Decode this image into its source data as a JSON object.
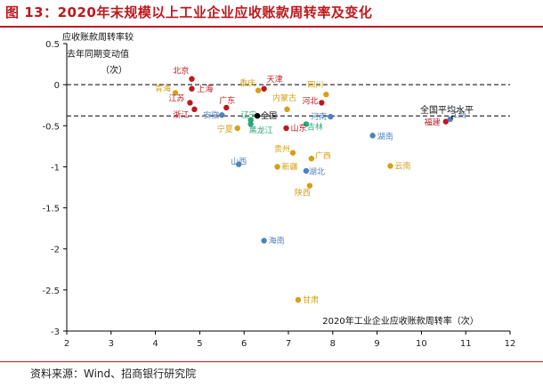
{
  "header": {
    "title": "图 13：2020年末规模以上工业企业应收账款周转率及变化"
  },
  "footer": {
    "source": "资料来源：Wind、招商银行研究院"
  },
  "chart_data": {
    "type": "scatter",
    "title": "图 13：2020年末规模以上工业企业应收账款周转率及变化",
    "xlabel": "2020年工业企业应收账款周转率（次）",
    "ylabel": "应收账款周转率较去年同期变动值（次）",
    "ylabel_lines": [
      "应收账款周转率较",
      "去年同期变动值",
      "（次）"
    ],
    "xlim": [
      2,
      12
    ],
    "ylim": [
      -3,
      0.5
    ],
    "x_ticks": [
      "2",
      "3",
      "4",
      "5",
      "6",
      "7",
      "8",
      "9",
      "10",
      "11",
      "12"
    ],
    "y_ticks": [
      "0.5",
      "0",
      "-0.5",
      "-1",
      "-1.5",
      "-2",
      "-2.5",
      "-3"
    ],
    "zero_line": 0,
    "national_average_y": -0.38,
    "national_average_label": "全国平均水平",
    "colors": {
      "red": "#c0171d",
      "orange": "#d4a017",
      "blue": "#4f81bd",
      "green": "#2aa876",
      "black": "#000000"
    },
    "points": [
      {
        "name": "北京",
        "x": 4.82,
        "y": 0.07,
        "color": "red"
      },
      {
        "name": "上海",
        "x": 4.82,
        "y": -0.05,
        "color": "red"
      },
      {
        "name": "青海",
        "x": 4.45,
        "y": -0.1,
        "color": "orange"
      },
      {
        "name": "江苏",
        "x": 4.78,
        "y": -0.22,
        "color": "red"
      },
      {
        "name": "浙江",
        "x": 4.88,
        "y": -0.3,
        "color": "red"
      },
      {
        "name": "安徽",
        "x": 5.5,
        "y": -0.37,
        "color": "blue"
      },
      {
        "name": "广东",
        "x": 5.6,
        "y": -0.28,
        "color": "red"
      },
      {
        "name": "宁夏",
        "x": 5.85,
        "y": -0.53,
        "color": "orange"
      },
      {
        "name": "重庆",
        "x": 6.32,
        "y": -0.07,
        "color": "orange"
      },
      {
        "name": "天津",
        "x": 6.45,
        "y": -0.05,
        "color": "red"
      },
      {
        "name": "辽宁",
        "x": 6.15,
        "y": -0.43,
        "color": "green"
      },
      {
        "name": "全国",
        "x": 6.3,
        "y": -0.38,
        "color": "black"
      },
      {
        "name": "黑龙江",
        "x": 6.15,
        "y": -0.48,
        "color": "green"
      },
      {
        "name": "内蒙古",
        "x": 6.97,
        "y": -0.3,
        "color": "orange"
      },
      {
        "name": "四川",
        "x": 7.85,
        "y": -0.12,
        "color": "orange"
      },
      {
        "name": "河北",
        "x": 7.75,
        "y": -0.22,
        "color": "red"
      },
      {
        "name": "河南",
        "x": 7.95,
        "y": -0.39,
        "color": "blue"
      },
      {
        "name": "吉林",
        "x": 7.4,
        "y": -0.48,
        "color": "green"
      },
      {
        "name": "山东",
        "x": 6.95,
        "y": -0.53,
        "color": "red"
      },
      {
        "name": "湖南",
        "x": 8.9,
        "y": -0.62,
        "color": "blue"
      },
      {
        "name": "福建",
        "x": 10.55,
        "y": -0.45,
        "color": "red"
      },
      {
        "name": "江西",
        "x": 10.65,
        "y": -0.42,
        "color": "blue"
      },
      {
        "name": "贵州",
        "x": 7.1,
        "y": -0.83,
        "color": "orange"
      },
      {
        "name": "广西",
        "x": 7.52,
        "y": -0.9,
        "color": "orange"
      },
      {
        "name": "山西",
        "x": 5.88,
        "y": -0.97,
        "color": "blue"
      },
      {
        "name": "新疆",
        "x": 6.75,
        "y": -1.0,
        "color": "orange"
      },
      {
        "name": "湖北",
        "x": 7.4,
        "y": -1.05,
        "color": "blue"
      },
      {
        "name": "云南",
        "x": 9.3,
        "y": -0.99,
        "color": "orange"
      },
      {
        "name": "陕西",
        "x": 7.48,
        "y": -1.23,
        "color": "orange"
      },
      {
        "name": "海南",
        "x": 6.45,
        "y": -1.9,
        "color": "blue"
      },
      {
        "name": "甘肃",
        "x": 7.22,
        "y": -2.62,
        "color": "orange"
      }
    ]
  }
}
